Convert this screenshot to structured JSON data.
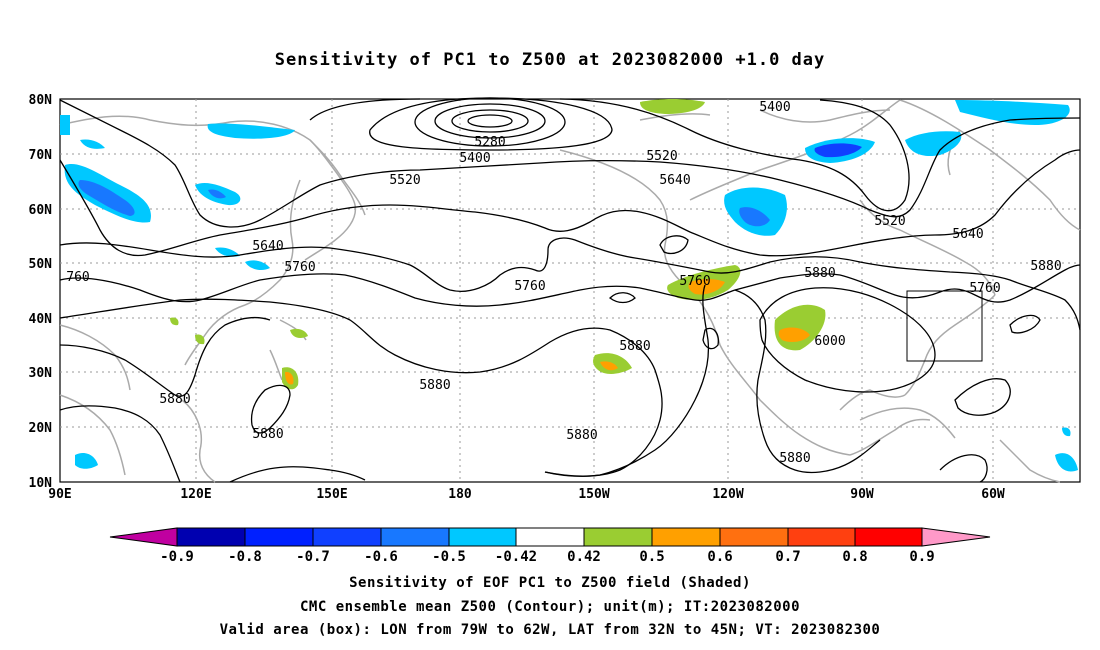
{
  "title": "Sensitivity of PC1 to Z500 at 2023082000 +1.0 day",
  "lat_labels": [
    "80N",
    "70N",
    "60N",
    "50N",
    "40N",
    "30N",
    "20N",
    "10N"
  ],
  "lon_labels": [
    "90E",
    "120E",
    "150E",
    "180",
    "150W",
    "120W",
    "90W",
    "60W"
  ],
  "contour_labels": {
    "c5280": "5280",
    "c5400a": "5400",
    "c5400b": "5400",
    "c5520a": "5520",
    "c5520b": "5520",
    "c5520c": "5520",
    "c5640a": "5640",
    "c5640b": "5640",
    "c5640c": "5640",
    "c5760a": "5760",
    "c5760b": "5760",
    "c5760c": "5760",
    "c5760d": "5760",
    "c5760e": "760",
    "c5880a": "5880",
    "c5880b": "5880",
    "c5880c": "5880",
    "c5880d": "5880",
    "c5880e": "5880",
    "c5880f": "5880",
    "c5880g": "5880",
    "c5880h": "5880",
    "c6000": "6000"
  },
  "colorbar": {
    "labels": [
      "-0.9",
      "-0.8",
      "-0.7",
      "-0.6",
      "-0.5",
      "-0.42",
      "0.42",
      "0.5",
      "0.6",
      "0.7",
      "0.8",
      "0.9"
    ],
    "colors": [
      "#c000a0",
      "#0000b0",
      "#0020ff",
      "#1040ff",
      "#1878ff",
      "#00c8ff",
      "#ffffff",
      "#9acd32",
      "#ffa000",
      "#ff7010",
      "#ff4010",
      "#ff0000",
      "#ff99c8"
    ]
  },
  "captions": [
    "Sensitivity of EOF PC1 to Z500 field (Shaded)",
    "CMC ensemble mean Z500 (Contour); unit(m); IT:2023082000",
    "Valid area (box): LON from 79W to 62W, LAT from 32N to 45N; VT: 2023082300"
  ]
}
